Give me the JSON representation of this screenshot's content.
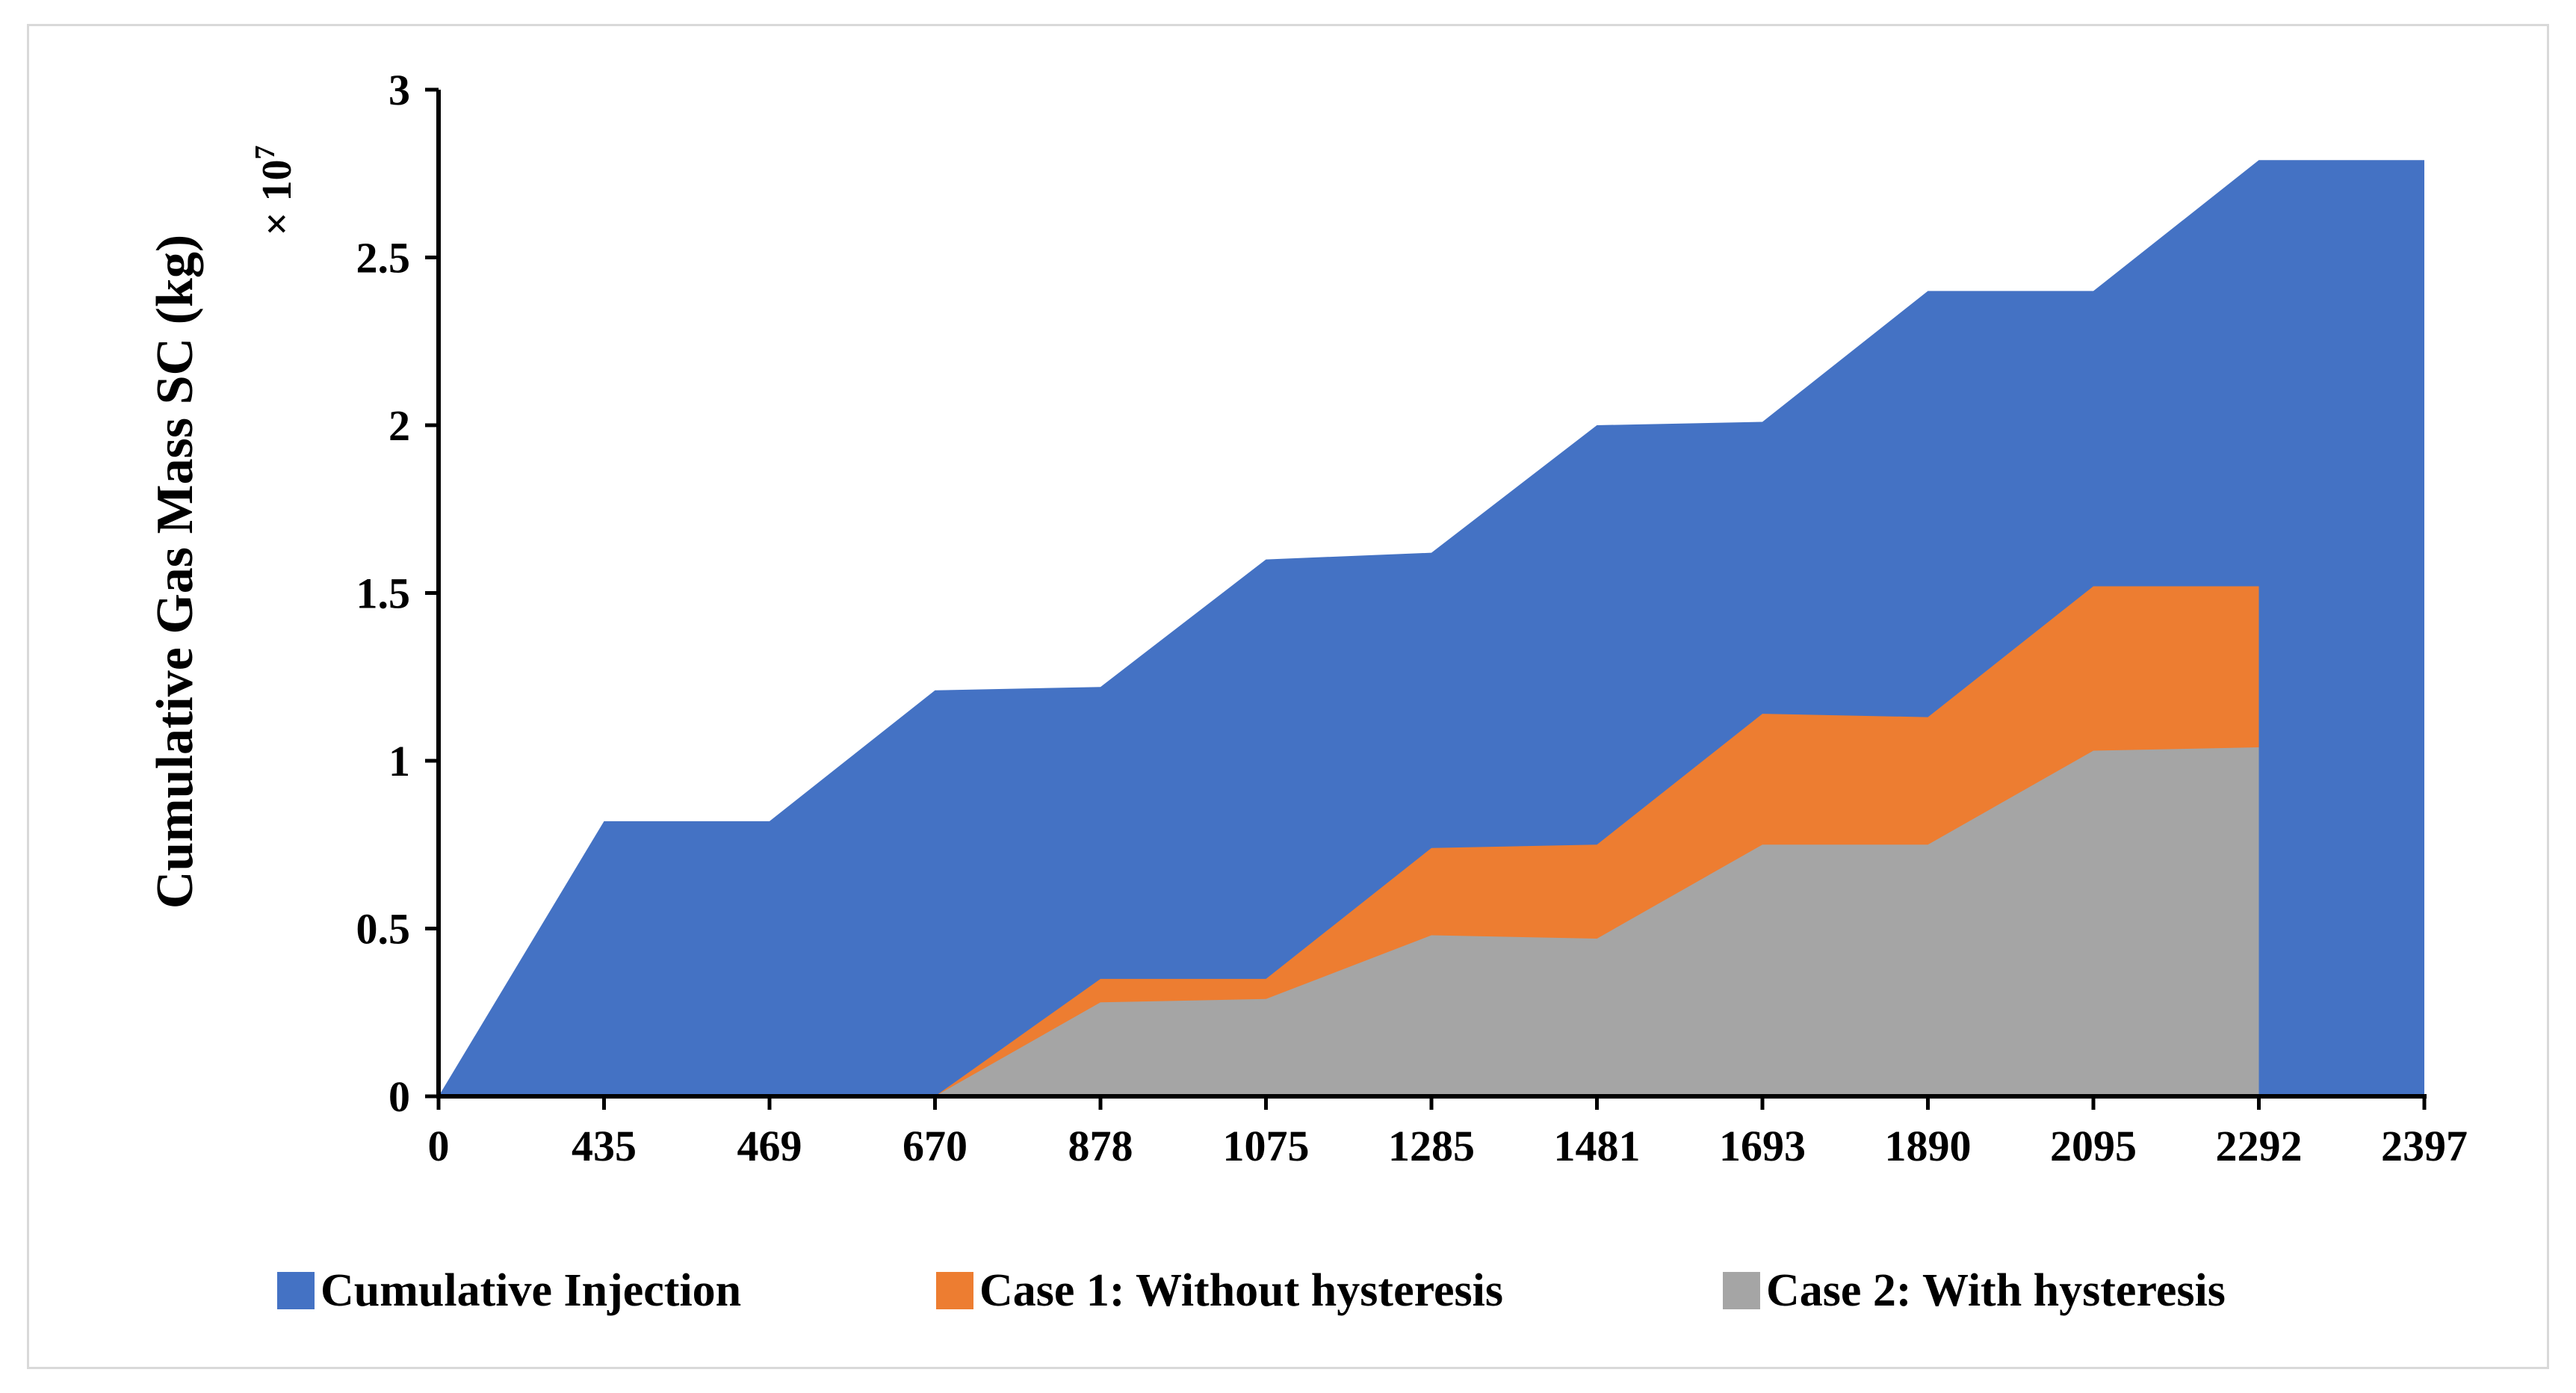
{
  "chart_data": {
    "type": "area",
    "categories": [
      "0",
      "435",
      "469",
      "670",
      "878",
      "1075",
      "1285",
      "1481",
      "1693",
      "1890",
      "2095",
      "2292",
      "2397"
    ],
    "ylabel": "Cumulative Gas Mass SC (kg)",
    "y_multiplier_label": "× 10",
    "y_multiplier_exponent": "7",
    "ylim": [
      0,
      3
    ],
    "yticks": [
      0,
      0.5,
      1,
      1.5,
      2,
      2.5,
      3
    ],
    "ytick_labels": [
      "0",
      "0.5",
      "1",
      "1.5",
      "2",
      "2.5",
      "3"
    ],
    "grid": false,
    "legend_position": "bottom",
    "series": [
      {
        "name": "Cumulative Injection",
        "color": "#4472C4",
        "values": [
          0,
          0.82,
          0.82,
          1.21,
          1.22,
          1.6,
          1.62,
          2.0,
          2.01,
          2.4,
          2.4,
          2.79,
          2.79
        ]
      },
      {
        "name": "Case 1: Without hysteresis",
        "color": "#ED7D31",
        "values": [
          0,
          0,
          0,
          0,
          0.35,
          0.35,
          0.74,
          0.75,
          1.14,
          1.13,
          1.52,
          1.52,
          null
        ]
      },
      {
        "name": "Case 2: With hysteresis",
        "color": "#A5A5A5",
        "values": [
          0,
          0,
          0,
          0,
          0.28,
          0.29,
          0.48,
          0.47,
          0.75,
          0.75,
          1.03,
          1.04,
          null
        ]
      }
    ]
  }
}
